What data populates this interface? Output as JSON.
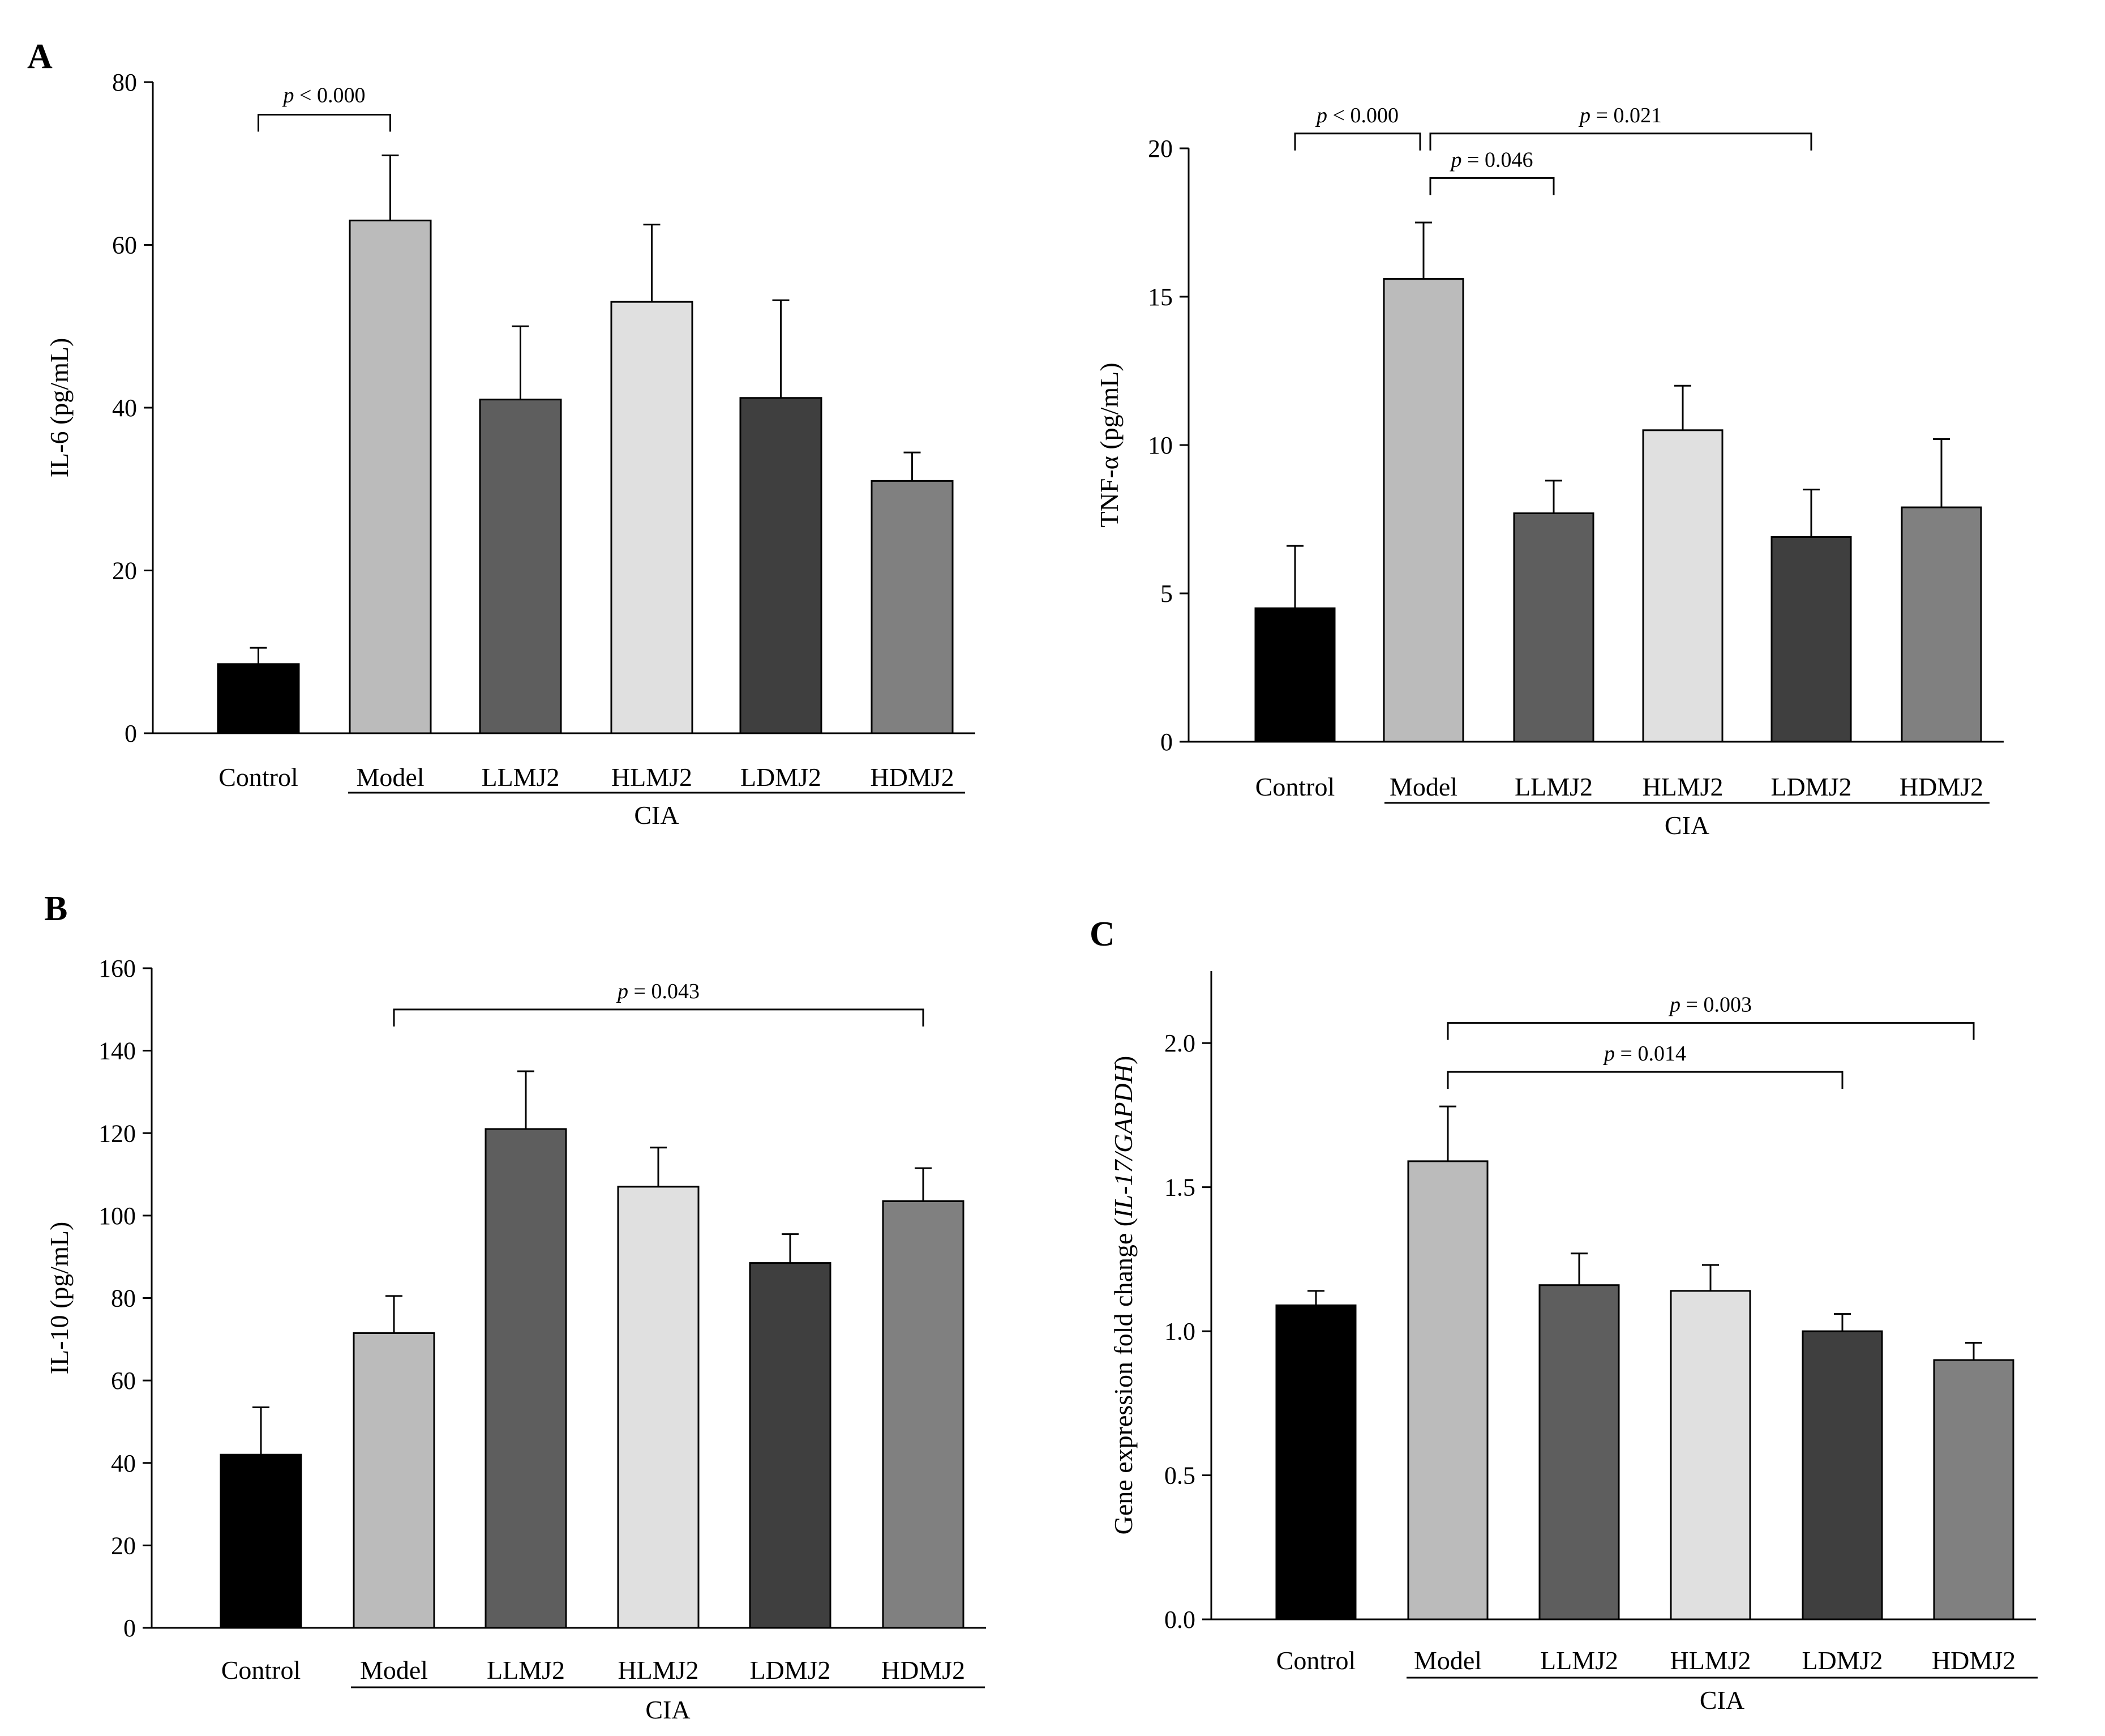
{
  "colors": {
    "Control": "#000000",
    "Model": "#bbbbbb",
    "LLMJ2": "#5e5e5e",
    "HLMJ2": "#e0e0e0",
    "LDMJ2": "#3f3f3f",
    "HDMJ2": "#808080"
  },
  "chart_data": [
    {
      "panel": "A",
      "type": "bar",
      "categories": [
        "Control",
        "Model",
        "LLMJ2",
        "HLMJ2",
        "LDMJ2",
        "HDMJ2"
      ],
      "values": [
        8.5,
        63.0,
        41.0,
        53.0,
        41.2,
        31.0
      ],
      "errors": [
        2.0,
        8.0,
        9.0,
        9.5,
        12.0,
        3.5
      ],
      "ylabel": "IL-6 (pg/mL)",
      "ylim": [
        0,
        80
      ],
      "yticks": [
        "0",
        "20",
        "40",
        "60",
        "80"
      ],
      "group_label": "CIA",
      "significance": [
        {
          "from": "Control",
          "to": "Model",
          "label": "p < 0.000",
          "level": 76
        }
      ]
    },
    {
      "panel": "",
      "type": "bar",
      "categories": [
        "Control",
        "Model",
        "LLMJ2",
        "HLMJ2",
        "LDMJ2",
        "HDMJ2"
      ],
      "values": [
        4.5,
        15.6,
        7.7,
        10.5,
        6.9,
        7.9
      ],
      "errors": [
        2.1,
        1.9,
        1.1,
        1.5,
        1.6,
        2.3
      ],
      "ylabel": "TNF-α (pg/mL)",
      "ylim": [
        0,
        20
      ],
      "yticks": [
        "0",
        "5",
        "10",
        "15",
        "20"
      ],
      "group_label": "CIA",
      "significance": [
        {
          "from": "Control",
          "to": "Model",
          "label": "p < 0.000",
          "level": 20.5
        },
        {
          "from": "Model",
          "to": "LDMJ2",
          "label": "p = 0.021",
          "level": 20.5
        },
        {
          "from": "Model",
          "to": "LLMJ2",
          "label": "p = 0.046",
          "level": 19.0
        }
      ]
    },
    {
      "panel": "B",
      "type": "bar",
      "categories": [
        "Control",
        "Model",
        "LLMJ2",
        "HLMJ2",
        "LDMJ2",
        "HDMJ2"
      ],
      "values": [
        42,
        71.5,
        121,
        107,
        88.5,
        103.5
      ],
      "errors": [
        11.5,
        9.0,
        14.0,
        9.5,
        7.0,
        8.0
      ],
      "ylabel": "IL-10 (pg/mL)",
      "ylim": [
        0,
        160
      ],
      "yticks": [
        "0",
        "20",
        "40",
        "60",
        "80",
        "100",
        "120",
        "140",
        "160"
      ],
      "group_label": "CIA",
      "significance": [
        {
          "from": "Model",
          "to": "HDMJ2",
          "label": "p = 0.043",
          "level": 150
        }
      ]
    },
    {
      "panel": "C",
      "type": "bar",
      "categories": [
        "Control",
        "Model",
        "LLMJ2",
        "HLMJ2",
        "LDMJ2",
        "HDMJ2"
      ],
      "values": [
        1.09,
        1.59,
        1.16,
        1.14,
        1.0,
        0.9
      ],
      "errors": [
        0.05,
        0.19,
        0.11,
        0.09,
        0.06,
        0.06
      ],
      "ylabel": "Gene expression fold change (IL-17/GAPDH)",
      "ylabel_prefix": "Gene expression fold change (",
      "ylabel_italic": "IL-17/GAPDH",
      "ylabel_suffix": ")",
      "ylim": [
        0,
        2.25
      ],
      "yticks": [
        "0.0",
        "0.5",
        "1.0",
        "1.5",
        "2.0"
      ],
      "group_label": "CIA",
      "significance": [
        {
          "from": "Model",
          "to": "HDMJ2",
          "label": "p = 0.003",
          "level": 2.07
        },
        {
          "from": "Model",
          "to": "LDMJ2",
          "label": "p = 0.014",
          "level": 1.9
        }
      ]
    }
  ]
}
